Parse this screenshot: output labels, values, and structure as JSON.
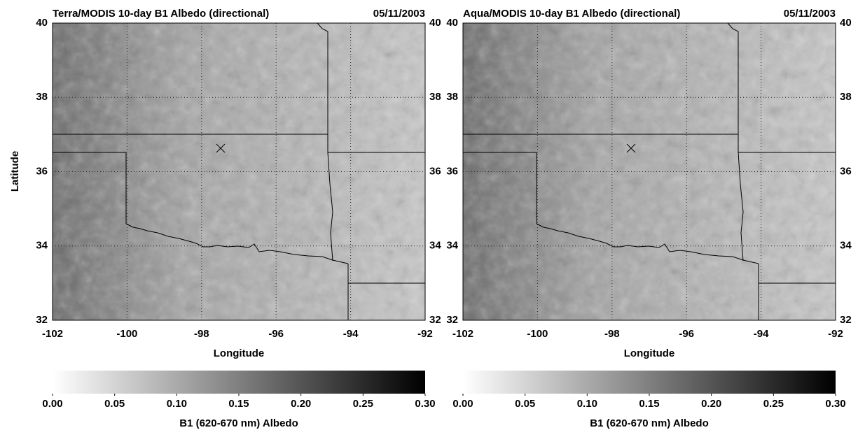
{
  "panels": [
    {
      "title": "Terra/MODIS 10-day B1 Albedo (directional)",
      "date": "05/11/2003",
      "xlabel": "Longitude",
      "ylabel": "Latitude",
      "xlim": [
        -102,
        -92
      ],
      "ylim": [
        32,
        40
      ],
      "xticks": [
        -102,
        -100,
        -98,
        -96,
        -94,
        -92
      ],
      "yticks": [
        32,
        34,
        36,
        38,
        40
      ],
      "colorbar": {
        "label": "B1 (620-670 nm) Albedo",
        "lim": [
          0,
          0.3
        ],
        "ticks": [
          {
            "value": 0,
            "label": "0.00"
          },
          {
            "value": 0.05,
            "label": "0.05"
          },
          {
            "value": 0.1,
            "label": "0.10"
          },
          {
            "value": 0.15,
            "label": "0.15"
          },
          {
            "value": 0.2,
            "label": "0.20"
          },
          {
            "value": 0.25,
            "label": "0.25"
          },
          {
            "value": 0.3,
            "label": "0.30"
          }
        ]
      }
    },
    {
      "title": "Aqua/MODIS 10-day B1 Albedo (directional)",
      "date": "05/11/2003",
      "xlabel": "Longitude",
      "xlim": [
        -102,
        -92
      ],
      "ylim": [
        32,
        40
      ],
      "xticks": [
        -102,
        -100,
        -98,
        -96,
        -94,
        -92
      ],
      "yticks": [
        32,
        34,
        36,
        38,
        40
      ],
      "colorbar": {
        "label": "B1 (620-670 nm) Albedo",
        "lim": [
          0,
          0.3
        ],
        "ticks": [
          {
            "value": 0,
            "label": "0.00"
          },
          {
            "value": 0.05,
            "label": "0.05"
          },
          {
            "value": 0.1,
            "label": "0.10"
          },
          {
            "value": 0.15,
            "label": "0.15"
          },
          {
            "value": 0.2,
            "label": "0.20"
          },
          {
            "value": 0.25,
            "label": "0.25"
          },
          {
            "value": 0.3,
            "label": "0.30"
          }
        ]
      }
    }
  ]
}
